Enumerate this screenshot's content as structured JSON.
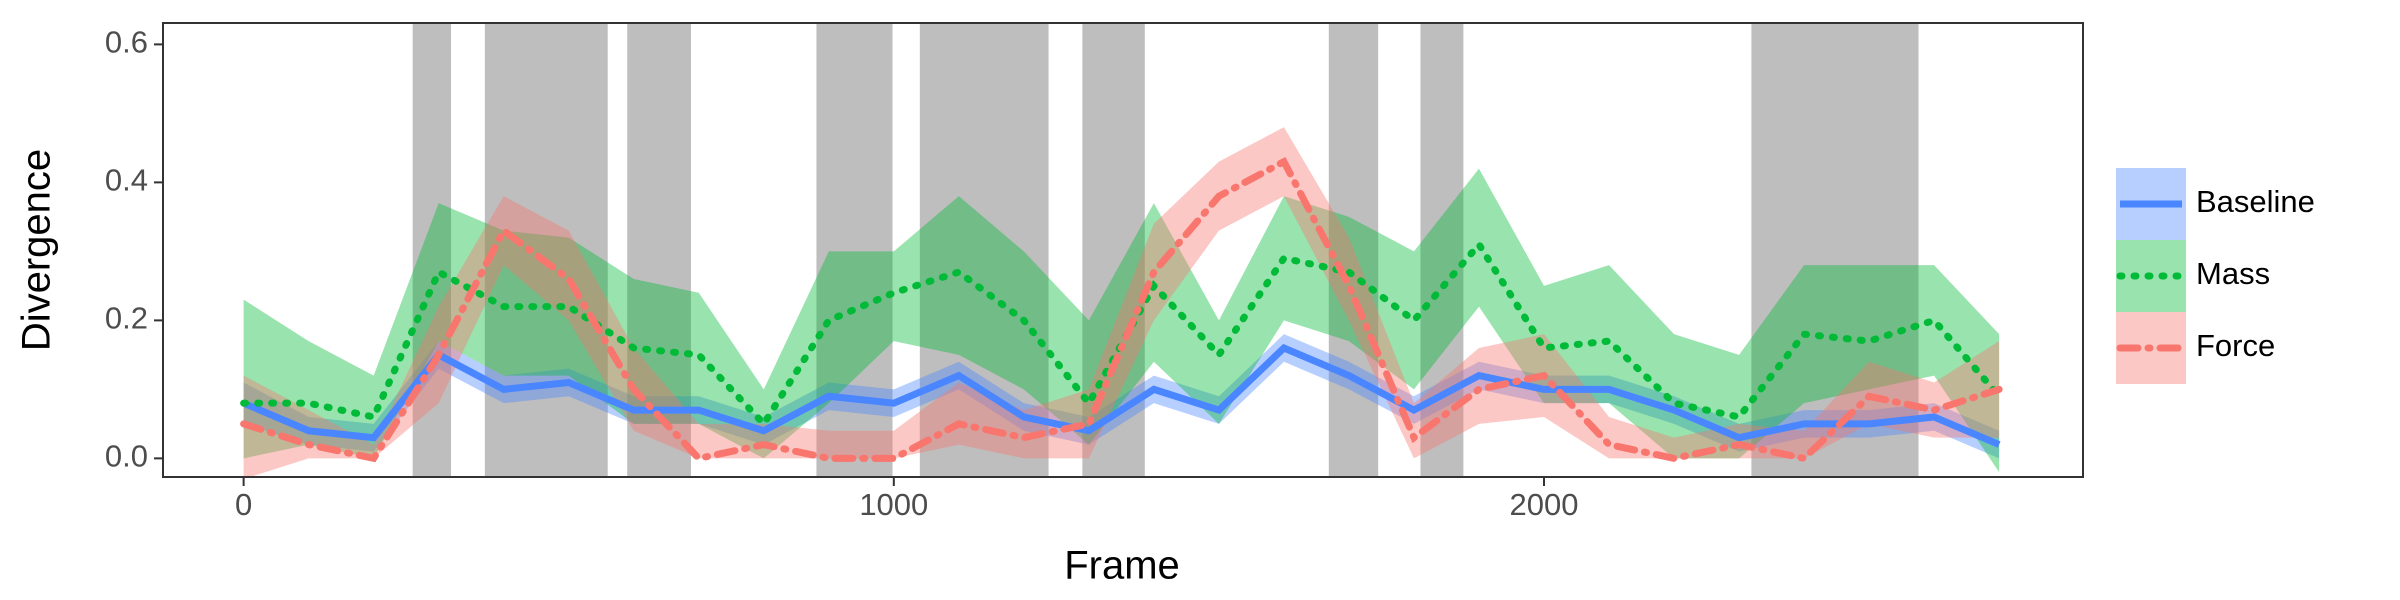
{
  "chart_data": {
    "type": "line",
    "xlabel": "Frame",
    "ylabel": "Divergence",
    "xlim": [
      -124,
      2829
    ],
    "ylim": [
      -0.027,
      0.631
    ],
    "xticks": [
      0,
      1000,
      2000
    ],
    "yticks": [
      {
        "value": 0,
        "label": "0.0"
      },
      0.2,
      0.4,
      0.6
    ],
    "grid": false,
    "legend_position": "right",
    "shade_color": "#bebebe",
    "shaded_regions": [
      [
        260,
        319
      ],
      [
        371,
        560
      ],
      [
        590,
        688
      ],
      [
        881,
        998
      ],
      [
        1040,
        1238
      ],
      [
        1290,
        1386
      ],
      [
        1669,
        1745
      ],
      [
        1810,
        1876
      ],
      [
        2319,
        2576
      ]
    ],
    "x": [
      0,
      100,
      200,
      300,
      400,
      500,
      600,
      700,
      800,
      900,
      1000,
      1100,
      1200,
      1300,
      1400,
      1500,
      1600,
      1700,
      1800,
      1900,
      2000,
      2100,
      2200,
      2300,
      2400,
      2500,
      2600,
      2700
    ],
    "series": [
      {
        "name": "Baseline",
        "color": "#4a86ff",
        "dash": "solid",
        "values": [
          0.08,
          0.04,
          0.03,
          0.15,
          0.1,
          0.11,
          0.07,
          0.07,
          0.04,
          0.09,
          0.08,
          0.12,
          0.06,
          0.04,
          0.1,
          0.07,
          0.16,
          0.12,
          0.07,
          0.12,
          0.1,
          0.1,
          0.07,
          0.03,
          0.05,
          0.05,
          0.06,
          0.02
        ],
        "lower": [
          0.05,
          0.02,
          0.01,
          0.13,
          0.08,
          0.09,
          0.05,
          0.05,
          0.02,
          0.07,
          0.06,
          0.1,
          0.04,
          0.02,
          0.08,
          0.05,
          0.14,
          0.1,
          0.05,
          0.1,
          0.08,
          0.08,
          0.05,
          0.01,
          0.03,
          0.03,
          0.04,
          0.0
        ],
        "upper": [
          0.11,
          0.06,
          0.05,
          0.17,
          0.12,
          0.13,
          0.09,
          0.09,
          0.06,
          0.11,
          0.1,
          0.14,
          0.08,
          0.06,
          0.12,
          0.09,
          0.18,
          0.14,
          0.09,
          0.14,
          0.12,
          0.12,
          0.09,
          0.05,
          0.07,
          0.07,
          0.08,
          0.04
        ]
      },
      {
        "name": "Mass",
        "color": "#00ba38",
        "dash": "dotted",
        "values": [
          0.08,
          0.08,
          0.06,
          0.27,
          0.22,
          0.22,
          0.16,
          0.15,
          0.05,
          0.2,
          0.24,
          0.27,
          0.2,
          0.08,
          0.25,
          0.15,
          0.29,
          0.27,
          0.2,
          0.31,
          0.16,
          0.17,
          0.08,
          0.06,
          0.18,
          0.17,
          0.2,
          0.09
        ],
        "lower": [
          0.0,
          0.02,
          0.0,
          0.17,
          0.12,
          0.12,
          0.05,
          0.05,
          0.0,
          0.08,
          0.17,
          0.15,
          0.1,
          0.02,
          0.14,
          0.05,
          0.2,
          0.17,
          0.1,
          0.22,
          0.08,
          0.08,
          0.0,
          0.0,
          0.08,
          0.1,
          0.12,
          -0.02
        ],
        "upper": [
          0.23,
          0.17,
          0.12,
          0.37,
          0.33,
          0.32,
          0.26,
          0.24,
          0.1,
          0.3,
          0.3,
          0.38,
          0.3,
          0.2,
          0.37,
          0.2,
          0.38,
          0.35,
          0.3,
          0.42,
          0.25,
          0.28,
          0.18,
          0.15,
          0.28,
          0.28,
          0.28,
          0.18
        ]
      },
      {
        "name": "Force",
        "color": "#f8766d",
        "dash": "dashdot",
        "values": [
          0.05,
          0.02,
          0.0,
          0.15,
          0.33,
          0.26,
          0.1,
          0.0,
          0.02,
          0.0,
          0.0,
          0.05,
          0.03,
          0.05,
          0.27,
          0.38,
          0.43,
          0.25,
          0.03,
          0.1,
          0.12,
          0.02,
          0.0,
          0.02,
          0.0,
          0.09,
          0.07,
          0.1
        ],
        "lower": [
          -0.03,
          0.0,
          0.0,
          0.08,
          0.28,
          0.2,
          0.04,
          0.0,
          0.0,
          0.0,
          0.0,
          0.02,
          0.0,
          0.0,
          0.2,
          0.33,
          0.38,
          0.2,
          0.0,
          0.05,
          0.06,
          0.0,
          0.0,
          0.0,
          0.0,
          0.05,
          0.03,
          0.03
        ],
        "upper": [
          0.12,
          0.07,
          0.02,
          0.22,
          0.38,
          0.33,
          0.16,
          0.05,
          0.05,
          0.04,
          0.04,
          0.11,
          0.07,
          0.1,
          0.34,
          0.43,
          0.48,
          0.32,
          0.08,
          0.16,
          0.18,
          0.06,
          0.03,
          0.05,
          0.04,
          0.14,
          0.11,
          0.17
        ]
      }
    ]
  }
}
